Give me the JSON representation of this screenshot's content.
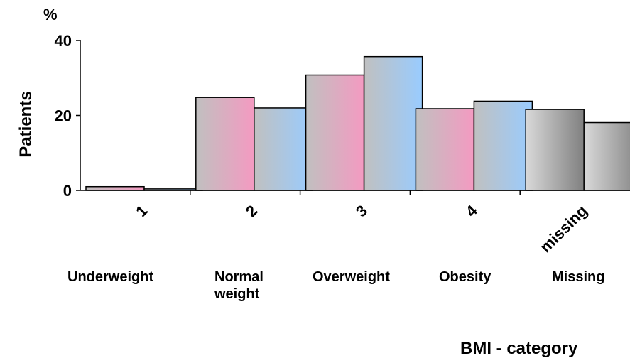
{
  "chart_data": {
    "type": "bar",
    "ylabel": "Patients",
    "yunit": "%",
    "xlabel": "BMI - category",
    "ylim": [
      0,
      40
    ],
    "yticks": [
      0,
      20,
      40
    ],
    "grid": false,
    "legend": "none",
    "categories": [
      "1",
      "2",
      "3",
      "4",
      "missing"
    ],
    "category_descriptions": [
      "Underweight",
      "Normal weight",
      "Overweight",
      "Obesity",
      "Missing"
    ],
    "series": [
      {
        "values": [
          1.0,
          24.8,
          30.8,
          21.8,
          21.6
        ]
      },
      {
        "values": [
          0.4,
          22.0,
          35.7,
          23.8,
          18.1
        ]
      }
    ],
    "colors": {
      "series1_gradient": [
        "#c0c0c0",
        "#f49ac1"
      ],
      "series2_gradient": [
        "#c0c0c0",
        "#99ccff"
      ],
      "missing_gradient": [
        "#d9d9d9",
        "#808080"
      ]
    }
  }
}
